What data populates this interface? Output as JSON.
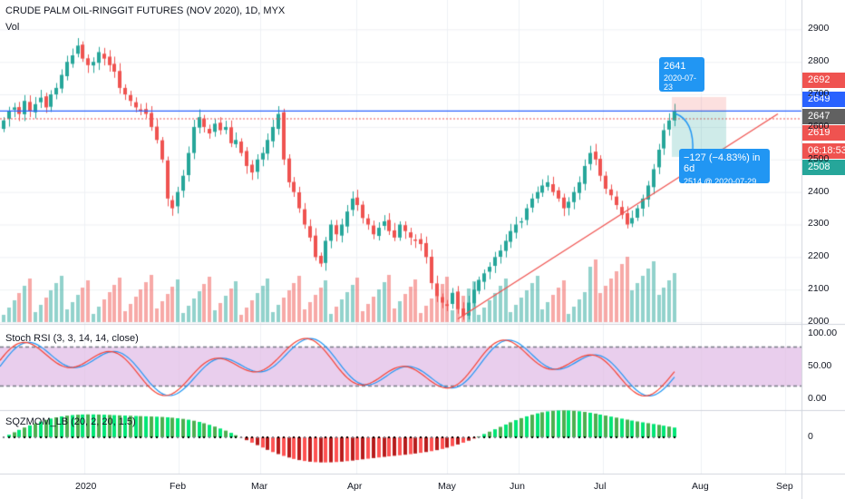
{
  "chart_title": "CRUDE PALM OIL-RINGGIT FUTURES (NOV 2020), 1D, MYX",
  "vol_label": "Vol",
  "stoch_label": "Stoch RSI (3, 3, 14, 14, close)",
  "sqz_label": "SQZMOM_LB (20, 2, 20, 1.5)",
  "price_axis_ticks": [
    "2900",
    "2800",
    "2700",
    "2600",
    "2500",
    "2400",
    "2300",
    "2200",
    "2100",
    "2000"
  ],
  "stoch_axis_ticks": [
    "100.00",
    "50.00",
    "0.00"
  ],
  "sqz_axis_ticks": [
    "0"
  ],
  "time_axis_ticks": [
    "2020",
    "Feb",
    "Mar",
    "Apr",
    "May",
    "Jun",
    "Jul",
    "Aug",
    "Sep"
  ],
  "price_tags": {
    "top_red": "2692",
    "blue_line": "2649",
    "last_close": "2647",
    "lower_red": "2619",
    "countdown": "06:18:53",
    "target": "2508"
  },
  "tooltip_top": {
    "price": "2641",
    "date": "2020-07-23"
  },
  "tooltip_bottom": {
    "line1": "−127 (−4.83%) in 6d",
    "line2": "2514 @ 2020-07-29"
  },
  "colors": {
    "up": "#26a69a",
    "down": "#ef5350",
    "blue": "#2962ff",
    "tag_blue": "#2196f3",
    "stoch_k": "#2196f3",
    "stoch_d": "#f44336",
    "stoch_band": "#e1bee7"
  },
  "chart_data": {
    "type": "candlestick",
    "symbol_line": "CRUDE PALM OIL-RINGGIT FUTURES (NOV 2020), 1D, MYX",
    "price_range": [
      1950,
      2940
    ],
    "horizontal_level": 2649,
    "stoch_range": [
      0,
      100
    ],
    "stoch_levels": [
      80,
      20
    ],
    "closes": [
      2620,
      2650,
      2660,
      2640,
      2680,
      2650,
      2670,
      2690,
      2660,
      2700,
      2720,
      2760,
      2800,
      2820,
      2850,
      2810,
      2790,
      2800,
      2830,
      2810,
      2790,
      2770,
      2720,
      2700,
      2680,
      2660,
      2650,
      2640,
      2600,
      2560,
      2500,
      2380,
      2350,
      2400,
      2450,
      2520,
      2600,
      2630,
      2600,
      2580,
      2610,
      2590,
      2600,
      2550,
      2560,
      2520,
      2480,
      2460,
      2500,
      2520,
      2560,
      2600,
      2640,
      2500,
      2430,
      2400,
      2350,
      2300,
      2260,
      2200,
      2180,
      2250,
      2300,
      2270,
      2300,
      2340,
      2380,
      2360,
      2320,
      2300,
      2270,
      2290,
      2310,
      2280,
      2260,
      2300,
      2280,
      2260,
      2250,
      2240,
      2200,
      2120,
      2080,
      2060,
      2050,
      2090,
      2040,
      2020,
      2060,
      2100,
      2130,
      2150,
      2170,
      2200,
      2220,
      2250,
      2280,
      2300,
      2310,
      2350,
      2380,
      2400,
      2420,
      2430,
      2400,
      2380,
      2350,
      2370,
      2400,
      2430,
      2480,
      2520,
      2500,
      2450,
      2410,
      2390,
      2360,
      2330,
      2300,
      2320,
      2350,
      2380,
      2420,
      2470,
      2530,
      2590,
      2620,
      2647
    ]
  }
}
